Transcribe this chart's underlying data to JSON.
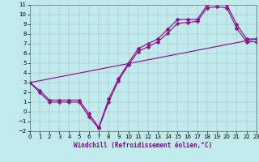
{
  "xlabel": "Windchill (Refroidissement éolien,°C)",
  "xlim": [
    0,
    23
  ],
  "ylim": [
    -2,
    11
  ],
  "xticks": [
    0,
    1,
    2,
    3,
    4,
    5,
    6,
    7,
    8,
    9,
    10,
    11,
    12,
    13,
    14,
    15,
    16,
    17,
    18,
    19,
    20,
    21,
    22,
    23
  ],
  "yticks": [
    -2,
    -1,
    0,
    1,
    2,
    3,
    4,
    5,
    6,
    7,
    8,
    9,
    10,
    11
  ],
  "bg_color": "#c0eaec",
  "grid_color": "#999999",
  "line_color": "#880088",
  "line1_x": [
    0,
    1,
    2,
    3,
    4,
    5,
    6,
    7,
    8,
    9,
    10,
    11,
    12,
    13,
    14,
    15,
    16,
    17,
    18,
    19,
    20,
    21,
    22,
    23
  ],
  "line1_y": [
    3.0,
    2.2,
    1.2,
    1.2,
    1.2,
    1.2,
    -0.2,
    -1.6,
    1.3,
    3.4,
    5.0,
    6.5,
    7.0,
    7.5,
    8.5,
    9.5,
    9.5,
    9.5,
    11.0,
    11.2,
    11.0,
    9.0,
    7.5,
    7.5
  ],
  "line2_x": [
    0,
    1,
    2,
    3,
    4,
    5,
    6,
    7,
    8,
    9,
    10,
    11,
    12,
    13,
    14,
    15,
    16,
    17,
    18,
    19,
    20,
    21,
    22,
    23
  ],
  "line2_y": [
    3.0,
    2.0,
    1.0,
    1.0,
    1.0,
    1.0,
    -0.5,
    -1.7,
    1.0,
    3.2,
    4.8,
    6.2,
    6.7,
    7.2,
    8.1,
    9.1,
    9.2,
    9.3,
    10.7,
    10.8,
    10.7,
    8.6,
    7.2,
    7.2
  ],
  "line3_x": [
    0,
    23
  ],
  "line3_y": [
    3.0,
    7.5
  ],
  "markersize": 2.5,
  "linewidth": 0.8,
  "tick_fontsize": 5.0,
  "xlabel_fontsize": 5.5
}
